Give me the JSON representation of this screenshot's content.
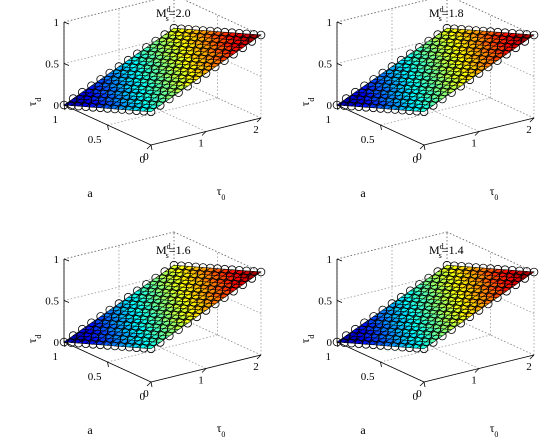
{
  "chart_data": [
    {
      "type": "surface",
      "title": {
        "main": "M",
        "sup": "d",
        "sub": "s",
        "rest": "=2.0"
      },
      "surface": "tau_d = 0.4 + 0.3*tau_0 - 0.4*a (linear plane)",
      "x": {
        "label": {
          "main": "τ",
          "sub": "0"
        },
        "lim": [
          0,
          2
        ],
        "ticks": [
          "0",
          "1",
          "2"
        ]
      },
      "y": {
        "label": {
          "main": "a",
          "sub": ""
        },
        "lim": [
          0,
          1
        ],
        "ticks": [
          "0",
          "0.5",
          "1"
        ]
      },
      "z": {
        "label": {
          "main": "τ",
          "sub": "d"
        },
        "lim": [
          0,
          1
        ],
        "ticks": [
          "0",
          "0.5",
          "1"
        ]
      },
      "corners": {
        "tau0_0_a_0": 0.4,
        "tau0_2_a_0": 1.0,
        "tau0_0_a_1": 0.0,
        "tau0_2_a_1": 0.6
      }
    },
    {
      "type": "surface",
      "title": {
        "main": "M",
        "sup": "d",
        "sub": "s",
        "rest": "=1.8"
      },
      "surface": "tau_d = 0.4 + 0.3*tau_0 - 0.4*a (linear plane)",
      "x": {
        "label": {
          "main": "τ",
          "sub": "0"
        },
        "lim": [
          0,
          2
        ],
        "ticks": [
          "0",
          "1",
          "2"
        ]
      },
      "y": {
        "label": {
          "main": "a",
          "sub": ""
        },
        "lim": [
          0,
          1
        ],
        "ticks": [
          "0",
          "0.5",
          "1"
        ]
      },
      "z": {
        "label": {
          "main": "τ",
          "sub": "d"
        },
        "lim": [
          0,
          1
        ],
        "ticks": [
          "0",
          "0.5",
          "1"
        ]
      },
      "corners": {
        "tau0_0_a_0": 0.4,
        "tau0_2_a_0": 1.0,
        "tau0_0_a_1": 0.0,
        "tau0_2_a_1": 0.6
      }
    },
    {
      "type": "surface",
      "title": {
        "main": "M",
        "sup": "d",
        "sub": "s",
        "rest": "=1.6"
      },
      "surface": "tau_d = 0.4 + 0.3*tau_0 - 0.4*a (linear plane)",
      "x": {
        "label": {
          "main": "τ",
          "sub": "0"
        },
        "lim": [
          0,
          2
        ],
        "ticks": [
          "0",
          "1",
          "2"
        ]
      },
      "y": {
        "label": {
          "main": "a",
          "sub": ""
        },
        "lim": [
          0,
          1
        ],
        "ticks": [
          "0",
          "0.5",
          "1"
        ]
      },
      "z": {
        "label": {
          "main": "τ",
          "sub": "d"
        },
        "lim": [
          0,
          1
        ],
        "ticks": [
          "0",
          "0.5",
          "1"
        ]
      },
      "corners": {
        "tau0_0_a_0": 0.4,
        "tau0_2_a_0": 1.0,
        "tau0_0_a_1": 0.0,
        "tau0_2_a_1": 0.6
      }
    },
    {
      "type": "surface",
      "title": {
        "main": "M",
        "sup": "d",
        "sub": "s",
        "rest": "=1.4"
      },
      "surface": "tau_d = 0.4 + 0.3*tau_0 - 0.4*a (linear plane)",
      "x": {
        "label": {
          "main": "τ",
          "sub": "0"
        },
        "lim": [
          0,
          2
        ],
        "ticks": [
          "0",
          "1",
          "2"
        ]
      },
      "y": {
        "label": {
          "main": "a",
          "sub": ""
        },
        "lim": [
          0,
          1
        ],
        "ticks": [
          "0",
          "0.5",
          "1"
        ]
      },
      "z": {
        "label": {
          "main": "τ",
          "sub": "d"
        },
        "lim": [
          0,
          1
        ],
        "ticks": [
          "0",
          "0.5",
          "1"
        ]
      },
      "corners": {
        "tau0_0_a_0": 0.4,
        "tau0_2_a_0": 1.0,
        "tau0_0_a_1": 0.0,
        "tau0_2_a_1": 0.6
      }
    }
  ],
  "style": {
    "colormap": "jet",
    "colormap_stops": [
      "#00008f",
      "#0000ff",
      "#00ffff",
      "#ffff00",
      "#ff0000",
      "#800000"
    ],
    "marker": "open circle",
    "grid": true,
    "box_edge_color": "#000000",
    "grid_color": "#9a9a9a"
  }
}
